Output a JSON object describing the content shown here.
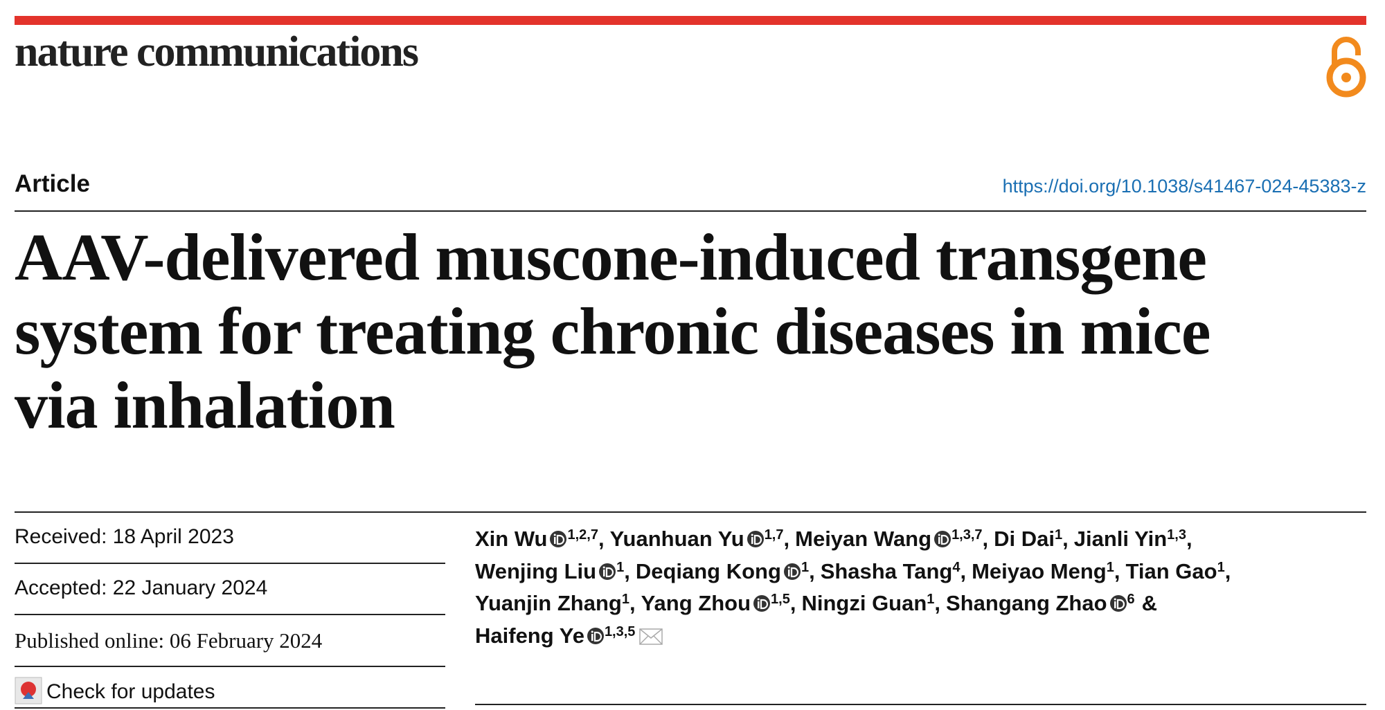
{
  "header": {
    "journal": "nature communications",
    "article_type": "Article",
    "doi": "https://doi.org/10.1038/s41467-024-45383-z",
    "title_lines": [
      "AAV-delivered muscone-induced transgene",
      "system for treating chronic diseases in mice",
      "via inhalation"
    ]
  },
  "dates": {
    "received": "Received: 18 April 2023",
    "accepted": "Accepted: 22 January 2024",
    "published": "Published online: 06 February 2024",
    "check_updates": "Check for updates"
  },
  "authors": {
    "lines": [
      [
        {
          "name": "Xin Wu",
          "orcid": true,
          "affiliations": "1,2,7",
          "separator": ","
        },
        {
          "name": "Yuanhuan Yu",
          "orcid": true,
          "affiliations": "1,7",
          "separator": ","
        },
        {
          "name": "Meiyan Wang",
          "orcid": true,
          "affiliations": "1,3,7",
          "separator": ","
        },
        {
          "name": "Di Dai",
          "orcid": false,
          "affiliations": "1",
          "separator": ","
        },
        {
          "name": "Jianli Yin",
          "orcid": false,
          "affiliations": "1,3",
          "separator": ","
        }
      ],
      [
        {
          "name": "Wenjing Liu",
          "orcid": true,
          "affiliations": "1",
          "separator": ","
        },
        {
          "name": "Deqiang Kong",
          "orcid": true,
          "affiliations": "1",
          "separator": ","
        },
        {
          "name": "Shasha Tang",
          "orcid": false,
          "affiliations": "4",
          "separator": ","
        },
        {
          "name": "Meiyao Meng",
          "orcid": false,
          "affiliations": "1",
          "separator": ","
        },
        {
          "name": "Tian Gao",
          "orcid": false,
          "affiliations": "1",
          "separator": ","
        }
      ],
      [
        {
          "name": "Yuanjin Zhang",
          "orcid": false,
          "affiliations": "1",
          "separator": ","
        },
        {
          "name": "Yang Zhou",
          "orcid": true,
          "affiliations": "1,5",
          "separator": ","
        },
        {
          "name": "Ningzi Guan",
          "orcid": false,
          "affiliations": "1",
          "separator": ","
        },
        {
          "name": "Shangang Zhao",
          "orcid": true,
          "affiliations": "6",
          "separator": "&"
        }
      ],
      [
        {
          "name": "Haifeng Ye",
          "orcid": true,
          "affiliations": "1,3,5",
          "corresponding": true
        }
      ]
    ]
  }
}
